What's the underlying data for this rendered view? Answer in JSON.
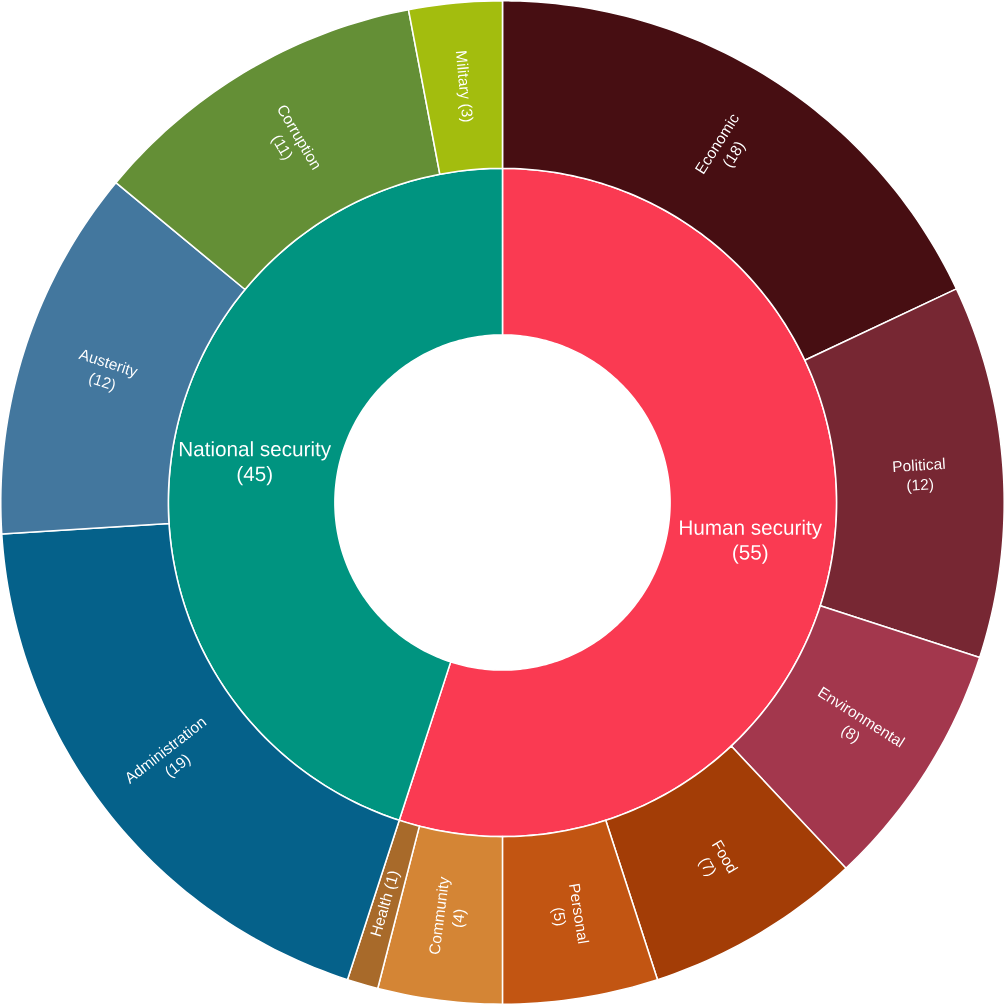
{
  "chart_data": [
    {
      "type": "donut",
      "categories": [
        "Human security",
        "National security"
      ],
      "values": [
        55,
        45
      ],
      "value_labels": [
        "(55)",
        "(45)"
      ],
      "colors": [
        "#fa3a52",
        "#009480"
      ]
    },
    {
      "type": "donut",
      "categories": [
        "Economic",
        "Political",
        "Environmental",
        "Food",
        "Personal",
        "Community",
        "Health",
        "Administration",
        "Austerity",
        "Corruption",
        "Military"
      ],
      "values": [
        18,
        12,
        8,
        7,
        5,
        4,
        1,
        19,
        12,
        11,
        3
      ],
      "value_labels": [
        "(18)",
        "(12)",
        "(8)",
        "(7)",
        "(5)",
        "(4)",
        "(1)",
        "(19)",
        "(12)",
        "(11)",
        "(3)"
      ],
      "colors": [
        "#470e12",
        "#772733",
        "#a3374d",
        "#a33d06",
        "#c25512",
        "#d48535",
        "#a86a2a",
        "#05618a",
        "#43779e",
        "#648f36",
        "#a3bd0e"
      ]
    }
  ]
}
